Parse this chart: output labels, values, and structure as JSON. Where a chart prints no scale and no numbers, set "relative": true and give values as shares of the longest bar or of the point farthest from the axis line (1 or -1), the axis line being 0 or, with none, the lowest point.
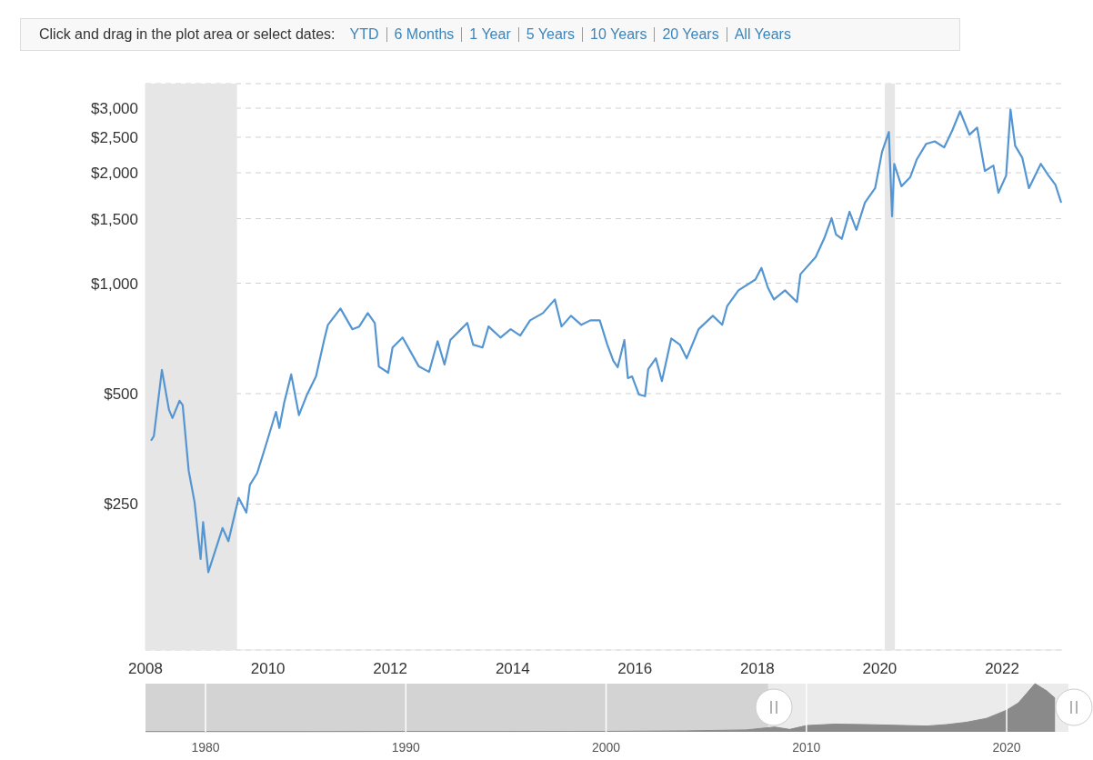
{
  "chart_data": [
    {
      "type": "line",
      "annotations": [
        "Click and drag in the plot area or select dates:",
        "YTD",
        "6 Months",
        "1 Year",
        "5 Years",
        "10 Years",
        "20 Years",
        "All Years"
      ],
      "series": [
        {
          "color": "#5596d2",
          "x": [
            "2008-02-03",
            "2008-02-20",
            "2008-04-08",
            "2008-05-20",
            "2008-06-10",
            "2008-07-22",
            "2008-08-10",
            "2008-09-15",
            "2008-10-20",
            "2008-11-25",
            "2008-12-10",
            "2009-01-10",
            "2009-04-05",
            "2009-05-10",
            "2009-07-10",
            "2009-08-25",
            "2009-09-15",
            "2009-10-28",
            "2009-12-15",
            "2010-02-18",
            "2010-03-10",
            "2010-04-08",
            "2010-05-20",
            "2010-07-05",
            "2010-08-20",
            "2010-10-15",
            "2010-12-01",
            "2010-12-25",
            "2011-03-10",
            "2011-05-20",
            "2011-06-30",
            "2011-08-20",
            "2011-10-01",
            "2011-10-25",
            "2011-12-20",
            "2012-01-15",
            "2012-03-15",
            "2012-06-20",
            "2012-08-20",
            "2012-10-10",
            "2012-11-20",
            "2012-12-25",
            "2013-04-05",
            "2013-05-10",
            "2013-07-05",
            "2013-08-10",
            "2013-10-20",
            "2013-12-20",
            "2014-02-15",
            "2014-04-15",
            "2014-07-01",
            "2014-09-10",
            "2014-10-20",
            "2014-12-15",
            "2015-02-15",
            "2015-04-10",
            "2015-06-05",
            "2015-07-20",
            "2015-08-25",
            "2015-09-20",
            "2015-10-30",
            "2015-11-20",
            "2015-12-15",
            "2016-01-25",
            "2016-03-01",
            "2016-03-20",
            "2016-05-05",
            "2016-06-10",
            "2016-08-05",
            "2016-09-25",
            "2016-11-05",
            "2017-01-15",
            "2017-04-10",
            "2017-06-05",
            "2017-07-05",
            "2017-09-10",
            "2017-12-20",
            "2018-01-25",
            "2018-03-05",
            "2018-04-10",
            "2018-06-15",
            "2018-08-25",
            "2018-09-15",
            "2018-12-15",
            "2019-02-05",
            "2019-03-20",
            "2019-04-15",
            "2019-05-20",
            "2019-07-05",
            "2019-08-15",
            "2019-10-05",
            "2019-12-05",
            "2020-01-15",
            "2020-02-25",
            "2020-03-15",
            "2020-03-28",
            "2020-05-10",
            "2020-07-01",
            "2020-08-10",
            "2020-10-05",
            "2020-11-25",
            "2021-01-20",
            "2021-03-10",
            "2021-04-25",
            "2021-06-20",
            "2021-08-05",
            "2021-09-20",
            "2021-11-10",
            "2021-12-10",
            "2022-01-25",
            "2022-02-20",
            "2022-03-20",
            "2022-05-01",
            "2022-06-10",
            "2022-08-20",
            "2022-10-05",
            "2022-11-15",
            "2022-12-20"
          ],
          "values": [
            372,
            383,
            580,
            452,
            429,
            478,
            465,
            308,
            253,
            177,
            223,
            163,
            215,
            198,
            260,
            237,
            282,
            303,
            356,
            446,
            403,
            472,
            564,
            437,
            494,
            557,
            695,
            770,
            853,
            749,
            762,
            829,
            779,
            593,
            570,
            668,
            711,
            593,
            573,
            695,
            600,
            700,
            779,
            680,
            668,
            762,
            711,
            749,
            720,
            792,
            829,
            903,
            762,
            815,
            770,
            792,
            792,
            680,
            614,
            590,
            700,
            551,
            557,
            497,
            492,
            583,
            624,
            541,
            707,
            680,
            624,
            749,
            815,
            770,
            867,
            956,
            1023,
            1101,
            972,
            903,
            956,
            888,
            1058,
            1179,
            1328,
            1504,
            1359,
            1321,
            1566,
            1398,
            1658,
            1816,
            2280,
            2584,
            1522,
            2115,
            1838,
            1944,
            2177,
            2399,
            2436,
            2345,
            2613,
            2941,
            2541,
            2656,
            2022,
            2093,
            1765,
            1965,
            2975,
            2370,
            2200,
            1816,
            2115,
            1965,
            1857,
            1658
          ]
        }
      ],
      "xlim": [
        "2008-01-01",
        "2022-12-25"
      ],
      "xticks": [
        "2008",
        "2010",
        "2012",
        "2014",
        "2016",
        "2018",
        "2020",
        "2022"
      ],
      "ylim": [
        100,
        3500
      ],
      "yticks": [
        {
          "value": 250,
          "label": "$250"
        },
        {
          "value": 500,
          "label": "$500"
        },
        {
          "value": 1000,
          "label": "$1,000"
        },
        {
          "value": 1500,
          "label": "$1,500"
        },
        {
          "value": 2000,
          "label": "$2,000"
        },
        {
          "value": 2500,
          "label": "$2,500"
        },
        {
          "value": 3000,
          "label": "$3,000"
        }
      ],
      "log": "y",
      "grid": "y",
      "bands": [
        {
          "axis": "x",
          "from": "2008-01-01",
          "to": "2009-06-30",
          "color": "#e6e6e6"
        },
        {
          "axis": "x",
          "from": "2020-02-01",
          "to": "2020-04-01",
          "color": "#e6e6e6"
        }
      ]
    },
    {
      "type": "area",
      "relative": true,
      "series": [
        {
          "color": "#8a8a8a",
          "x": [
            "1977",
            "1985",
            "1990",
            "1995",
            "2000",
            "2004",
            "2007",
            "2008-06",
            "2009-03",
            "2010",
            "2011-06",
            "2013",
            "2015",
            "2016",
            "2017",
            "2018",
            "2019",
            "2020",
            "2020-08",
            "2021",
            "2021-06",
            "2022",
            "2022-06"
          ],
          "values": [
            0.005,
            0.005,
            0.008,
            0.008,
            0.01,
            0.02,
            0.04,
            0.1,
            0.05,
            0.13,
            0.16,
            0.15,
            0.13,
            0.12,
            0.15,
            0.2,
            0.28,
            0.45,
            0.6,
            0.8,
            1,
            0.85,
            0.7
          ]
        }
      ],
      "xlim": [
        "1977",
        "2023-02"
      ],
      "xticks": [
        "1980",
        "1990",
        "2000",
        "2010",
        "2020"
      ],
      "grid": "x",
      "bands": [
        {
          "axis": "x",
          "from": "1977",
          "to": "2008-02",
          "color": "#d3d3d3"
        }
      ]
    }
  ]
}
